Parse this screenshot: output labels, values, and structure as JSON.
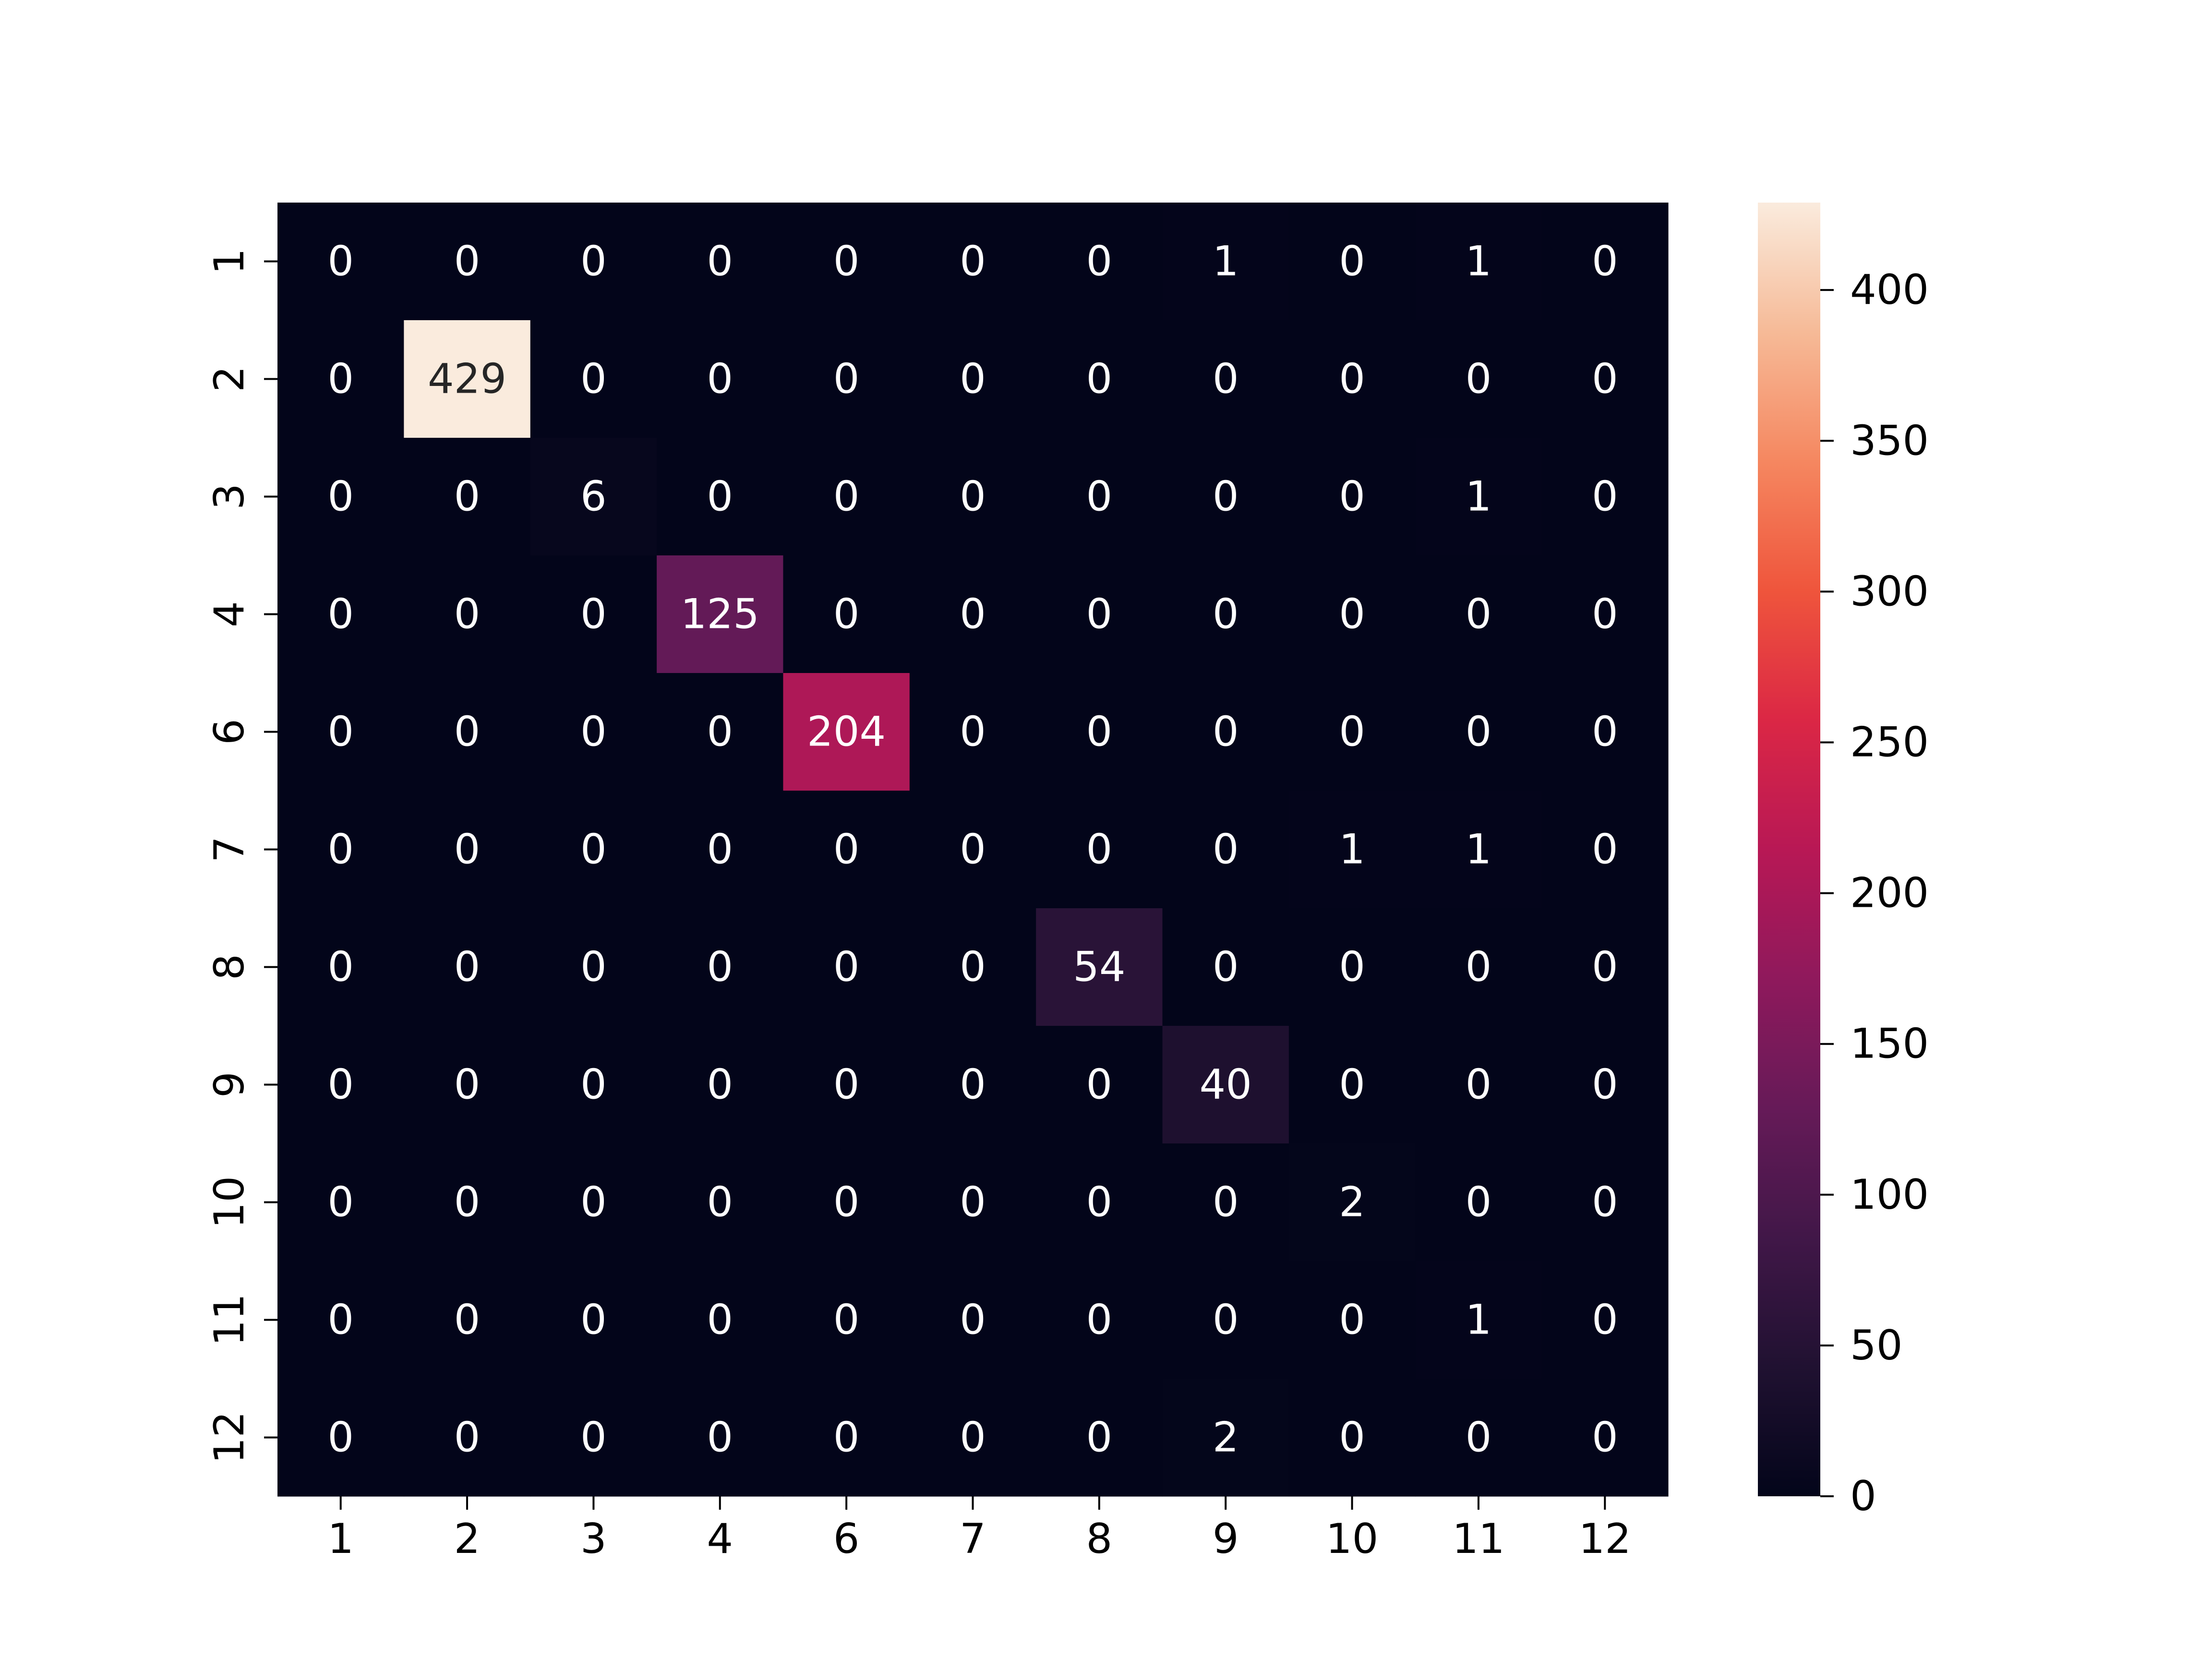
{
  "chart_data": {
    "type": "heatmap",
    "title": "",
    "xlabel": "",
    "ylabel": "",
    "x_categories": [
      "1",
      "2",
      "3",
      "4",
      "6",
      "7",
      "8",
      "9",
      "10",
      "11",
      "12"
    ],
    "y_categories": [
      "1",
      "2",
      "3",
      "4",
      "6",
      "7",
      "8",
      "9",
      "10",
      "11",
      "12"
    ],
    "values": [
      [
        0,
        0,
        0,
        0,
        0,
        0,
        0,
        1,
        0,
        1,
        0
      ],
      [
        0,
        429,
        0,
        0,
        0,
        0,
        0,
        0,
        0,
        0,
        0
      ],
      [
        0,
        0,
        6,
        0,
        0,
        0,
        0,
        0,
        0,
        1,
        0
      ],
      [
        0,
        0,
        0,
        125,
        0,
        0,
        0,
        0,
        0,
        0,
        0
      ],
      [
        0,
        0,
        0,
        0,
        204,
        0,
        0,
        0,
        0,
        0,
        0
      ],
      [
        0,
        0,
        0,
        0,
        0,
        0,
        0,
        0,
        1,
        1,
        0
      ],
      [
        0,
        0,
        0,
        0,
        0,
        0,
        54,
        0,
        0,
        0,
        0
      ],
      [
        0,
        0,
        0,
        0,
        0,
        0,
        0,
        40,
        0,
        0,
        0
      ],
      [
        0,
        0,
        0,
        0,
        0,
        0,
        0,
        0,
        2,
        0,
        0
      ],
      [
        0,
        0,
        0,
        0,
        0,
        0,
        0,
        0,
        0,
        1,
        0
      ],
      [
        0,
        0,
        0,
        0,
        0,
        0,
        0,
        2,
        0,
        0,
        0
      ]
    ],
    "colorbar": {
      "min": 0,
      "max": 429,
      "ticks": [
        "0",
        "50",
        "100",
        "150",
        "200",
        "250",
        "300",
        "350",
        "400"
      ],
      "colormap": "rocket"
    },
    "annotated": true,
    "grid": false
  }
}
